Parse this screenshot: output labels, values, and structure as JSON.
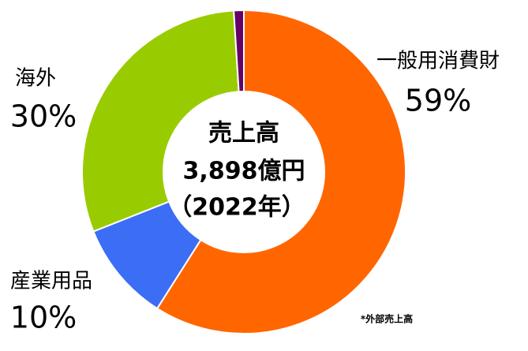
{
  "chart_data": {
    "type": "donut",
    "center_text": [
      "売上高",
      "3,898億円",
      "（2022年）"
    ],
    "categories": [
      "一般用消費財",
      "産業用品",
      "海外",
      null
    ],
    "values": [
      59,
      10,
      30,
      1
    ],
    "value_labels": [
      "59%",
      "10%",
      "30%",
      null
    ],
    "colors": [
      "#ff6600",
      "#3b6ef5",
      "#99cc00",
      "#660066"
    ],
    "footnote": "*外部売上高"
  }
}
